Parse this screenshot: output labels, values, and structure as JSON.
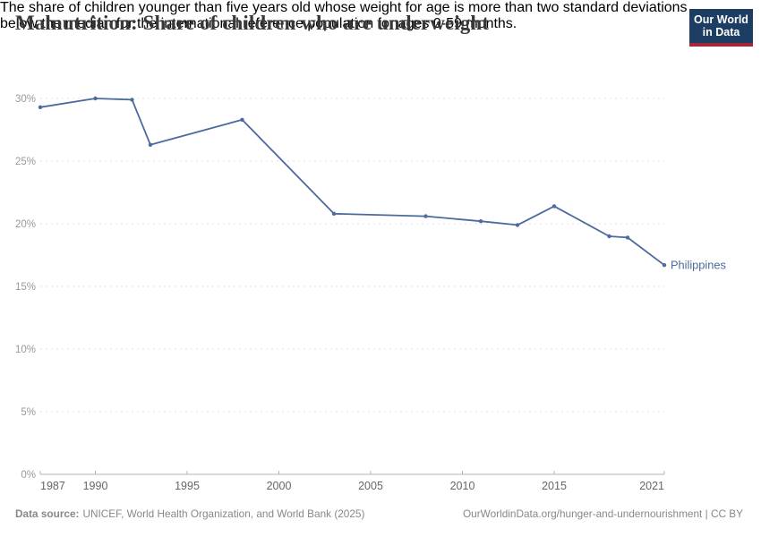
{
  "header": {
    "title": "Malnutrition: Share of children who are underweight",
    "subtitle_lines": [
      "The share of children younger than five years old whose weight for age is more than two standard deviations",
      "below the median for the international reference population for ages 0-59 months."
    ],
    "logo": {
      "line1": "Our World",
      "line2": "in Data",
      "bg_color": "#1d3d63",
      "accent_color": "#a52639"
    }
  },
  "chart_data": {
    "type": "line",
    "title": "Malnutrition: Share of children who are underweight",
    "xlabel": "",
    "ylabel": "",
    "xlim": [
      1987,
      2021
    ],
    "ylim": [
      0,
      30
    ],
    "x_ticks": [
      1987,
      1990,
      1995,
      2000,
      2005,
      2010,
      2015,
      2021
    ],
    "y_ticks": [
      0,
      5,
      10,
      15,
      20,
      25,
      30
    ],
    "y_suffix": "%",
    "grid": "horizontal-dashed",
    "legend": "end-of-line-label",
    "series": [
      {
        "name": "Philippines",
        "color": "#4C6A9C",
        "points": [
          {
            "year": 1987,
            "value": 29.3
          },
          {
            "year": 1990,
            "value": 30.0
          },
          {
            "year": 1992,
            "value": 29.9
          },
          {
            "year": 1993,
            "value": 26.3
          },
          {
            "year": 1998,
            "value": 28.3
          },
          {
            "year": 2003,
            "value": 20.8
          },
          {
            "year": 2008,
            "value": 20.6
          },
          {
            "year": 2011,
            "value": 20.2
          },
          {
            "year": 2013,
            "value": 19.9
          },
          {
            "year": 2015,
            "value": 21.4
          },
          {
            "year": 2018,
            "value": 19.0
          },
          {
            "year": 2019,
            "value": 18.9
          },
          {
            "year": 2021,
            "value": 16.7
          }
        ]
      }
    ]
  },
  "footer": {
    "source_label": "Data source:",
    "source_text": "UNICEF, World Health Organization, and World Bank (2025)",
    "attribution": "OurWorldinData.org/hunger-and-undernourishment | CC BY"
  }
}
